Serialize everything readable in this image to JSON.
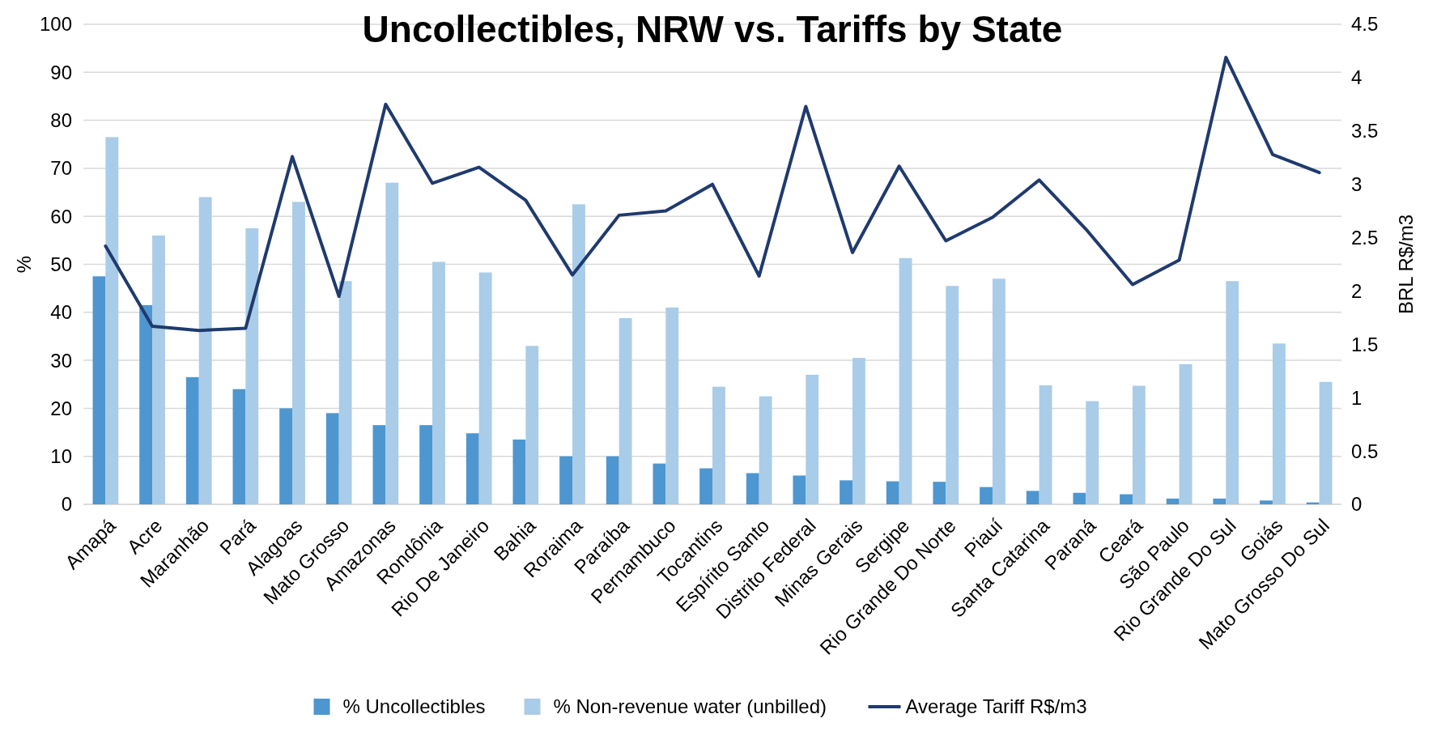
{
  "chart_data": {
    "type": "bar",
    "title": "Uncollectibles, NRW vs. Tariffs by State",
    "ylabel": "%",
    "y2label": "BRL R$/m3",
    "categories": [
      "Amapá",
      "Acre",
      "Maranhão",
      "Pará",
      "Alagoas",
      "Mato Grosso",
      "Amazonas",
      "Rondônia",
      "Rio De Janeiro",
      "Bahia",
      "Roraima",
      "Paraíba",
      "Pernambuco",
      "Tocantins",
      "Espírito Santo",
      "Distrito Federal",
      "Minas Gerais",
      "Sergipe",
      "Rio Grande Do Norte",
      "Piauí",
      "Santa Catarina",
      "Paraná",
      "Ceará",
      "São Paulo",
      "Rio Grande Do Sul",
      "Goiás",
      "Mato Grosso Do Sul"
    ],
    "series": [
      {
        "name": "% Uncollectibles",
        "color": "#4e96cf",
        "values": [
          47.5,
          41.5,
          26.5,
          24,
          20,
          19,
          16.5,
          16.5,
          14.8,
          13.5,
          10,
          10,
          8.5,
          7.5,
          6.5,
          6,
          5,
          4.8,
          4.7,
          3.6,
          2.8,
          2.4,
          2.1,
          1.2,
          1.2,
          0.8,
          0.4
        ]
      },
      {
        "name": "% Non-revenue water (unbilled)",
        "color": "#a9cce8",
        "values": [
          76.5,
          56,
          64,
          57.5,
          63,
          46.5,
          67,
          50.5,
          48.3,
          33,
          62.5,
          38.8,
          41,
          24.5,
          22.5,
          27,
          30.5,
          51.3,
          45.5,
          47,
          24.8,
          21.5,
          24.7,
          29.2,
          46.5,
          33.5,
          25.5
        ]
      },
      {
        "name": "Average Tariff R$/m3",
        "type": "line",
        "axis": "y2",
        "color": "#1f3a6e",
        "values": [
          2.42,
          1.67,
          1.63,
          1.65,
          3.26,
          1.95,
          3.75,
          3.01,
          3.16,
          2.85,
          2.15,
          2.71,
          2.75,
          3.0,
          2.14,
          3.73,
          2.36,
          3.17,
          2.47,
          2.69,
          3.04,
          2.58,
          2.06,
          2.29,
          4.19,
          3.28,
          3.11
        ]
      }
    ],
    "ylim": [
      0,
      100
    ],
    "yticks": [
      0,
      10,
      20,
      30,
      40,
      50,
      60,
      70,
      80,
      90,
      100
    ],
    "y2lim": [
      0,
      4.5
    ],
    "y2ticks": [
      0,
      0.5,
      1,
      1.5,
      2,
      2.5,
      3,
      3.5,
      4,
      4.5
    ],
    "grid": "y",
    "legend": "bottom",
    "line_style": "solid",
    "marker": "none"
  }
}
